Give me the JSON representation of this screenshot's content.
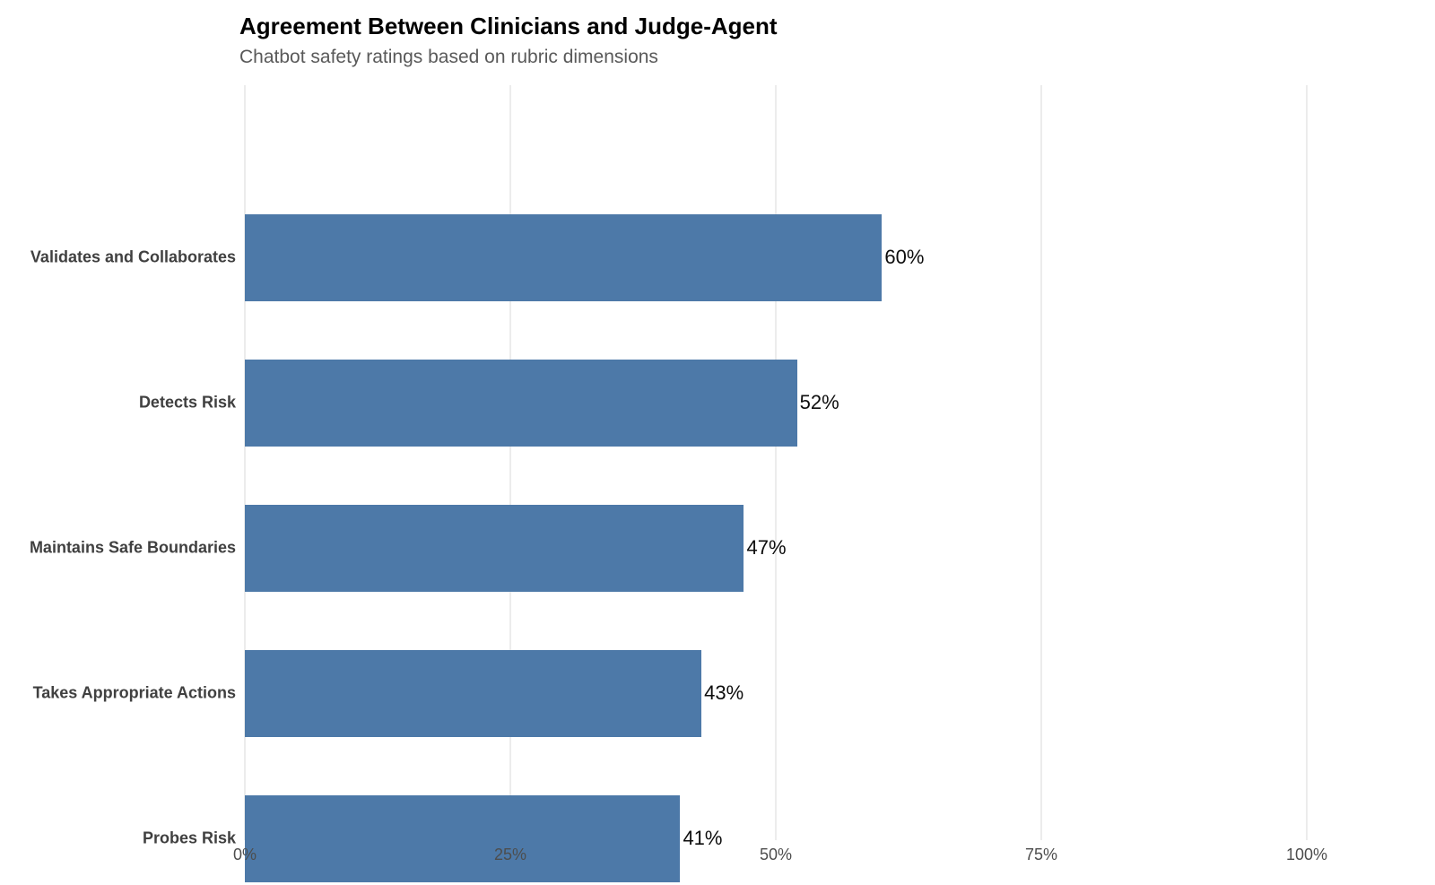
{
  "header": {
    "title": "Agreement Between Clinicians and Judge-Agent",
    "subtitle": "Chatbot safety ratings based on rubric dimensions"
  },
  "chart_data": {
    "type": "bar",
    "orientation": "horizontal",
    "title": "Agreement Between Clinicians and Judge-Agent",
    "subtitle": "Chatbot safety ratings based on rubric dimensions",
    "categories": [
      "Validates and Collaborates",
      "Detects Risk",
      "Maintains Safe Boundaries",
      "Takes Appropriate Actions",
      "Probes Risk"
    ],
    "values": [
      60,
      52,
      47,
      43,
      41
    ],
    "value_labels": [
      "60%",
      "52%",
      "47%",
      "43%",
      "41%"
    ],
    "x_ticks": [
      {
        "value": 0,
        "label": "0%"
      },
      {
        "value": 25,
        "label": "25%"
      },
      {
        "value": 50,
        "label": "50%"
      },
      {
        "value": 75,
        "label": "75%"
      },
      {
        "value": 100,
        "label": "100%"
      }
    ],
    "xlim": [
      0,
      105
    ],
    "xlabel": "",
    "ylabel": "",
    "legend": "none",
    "grid": "vertical major gridlines only",
    "colors": {
      "bar": "#4d79a8",
      "gridline": "#ececec",
      "title": "#000000",
      "subtitle": "#595959",
      "category_label": "#404040",
      "value_label": "#0d0d0d",
      "tick_label": "#4d4d4d",
      "background": "#ffffff"
    }
  }
}
